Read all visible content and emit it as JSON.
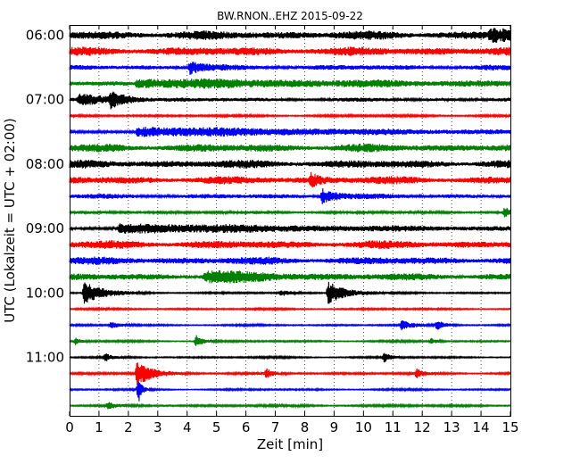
{
  "chart_data": {
    "type": "line",
    "title": "BW.RNON..EHZ 2015-09-22",
    "xlabel": "Zeit  [min]",
    "ylabel": "UTC (Lokalzeit = UTC + 02:00)",
    "xlim": [
      0,
      15
    ],
    "x_ticks": [
      "0",
      "1",
      "2",
      "3",
      "4",
      "5",
      "6",
      "7",
      "8",
      "9",
      "10",
      "11",
      "12",
      "13",
      "14",
      "15"
    ],
    "y_ticks": [
      "06:00",
      "07:00",
      "08:00",
      "09:00",
      "10:00",
      "11:00"
    ],
    "grid": "vertical dotted",
    "colors": [
      "#000000",
      "#ff0000",
      "#0000ff",
      "#008000"
    ],
    "series": [
      {
        "start": "06:00",
        "noise": 0.9,
        "events": [
          [
            14.3,
            1.1,
            1.2
          ]
        ]
      },
      {
        "start": "06:15",
        "noise": 0.9,
        "events": []
      },
      {
        "start": "06:30",
        "noise": 0.55,
        "events": [
          [
            4.1,
            1.3,
            0.4
          ]
        ]
      },
      {
        "start": "06:45",
        "noise": 0.5,
        "events": [
          [
            2.3,
            0.75,
            9
          ]
        ]
      },
      {
        "start": "07:00",
        "noise": 0.4,
        "events": [
          [
            1.4,
            1.5,
            0.5
          ],
          [
            0.3,
            0.9,
            1.2
          ]
        ]
      },
      {
        "start": "07:15",
        "noise": 0.25,
        "events": []
      },
      {
        "start": "07:30",
        "noise": 0.3,
        "events": [
          [
            2.3,
            0.9,
            9
          ]
        ]
      },
      {
        "start": "07:45",
        "noise": 0.85,
        "events": []
      },
      {
        "start": "08:00",
        "noise": 0.85,
        "events": []
      },
      {
        "start": "08:15",
        "noise": 0.8,
        "events": [
          [
            8.2,
            1.2,
            0.3
          ]
        ]
      },
      {
        "start": "08:30",
        "noise": 0.5,
        "events": [
          [
            8.6,
            1.5,
            0.5
          ]
        ]
      },
      {
        "start": "08:45",
        "noise": 0.3,
        "events": [
          [
            14.8,
            1.0,
            0.2
          ]
        ]
      },
      {
        "start": "09:00",
        "noise": 0.3,
        "events": [
          [
            1.7,
            0.9,
            9
          ]
        ]
      },
      {
        "start": "09:15",
        "noise": 0.85,
        "events": []
      },
      {
        "start": "09:30",
        "noise": 0.8,
        "events": []
      },
      {
        "start": "09:45",
        "noise": 0.7,
        "events": [
          [
            4.6,
            1.0,
            2
          ]
        ]
      },
      {
        "start": "10:00",
        "noise": 0.2,
        "events": [
          [
            0.5,
            2.3,
            0.6
          ],
          [
            8.8,
            2.3,
            0.6
          ],
          [
            7.2,
            0.6,
            0.3
          ]
        ]
      },
      {
        "start": "10:15",
        "noise": 0.2,
        "events": []
      },
      {
        "start": "10:30",
        "noise": 0.2,
        "events": [
          [
            11.3,
            1.0,
            0.3
          ],
          [
            12.5,
            0.9,
            0.3
          ],
          [
            1.4,
            0.6,
            0.3
          ]
        ]
      },
      {
        "start": "10:45",
        "noise": 0.2,
        "events": [
          [
            4.3,
            1.2,
            0.25
          ],
          [
            0.2,
            0.7,
            0.2
          ],
          [
            12.3,
            0.6,
            0.2
          ]
        ]
      },
      {
        "start": "11:00",
        "noise": 0.2,
        "events": [
          [
            10.7,
            1.0,
            0.2
          ],
          [
            1.2,
            0.8,
            0.2
          ]
        ]
      },
      {
        "start": "11:15",
        "noise": 0.25,
        "events": [
          [
            2.3,
            2.5,
            0.5
          ],
          [
            6.7,
            0.9,
            0.2
          ],
          [
            11.8,
            0.9,
            0.2
          ]
        ]
      },
      {
        "start": "11:30",
        "noise": 0.2,
        "events": [
          [
            2.35,
            3.0,
            0.1
          ]
        ]
      },
      {
        "start": "11:45",
        "noise": 0.25,
        "events": [
          [
            1.3,
            0.7,
            0.2
          ]
        ]
      }
    ]
  }
}
